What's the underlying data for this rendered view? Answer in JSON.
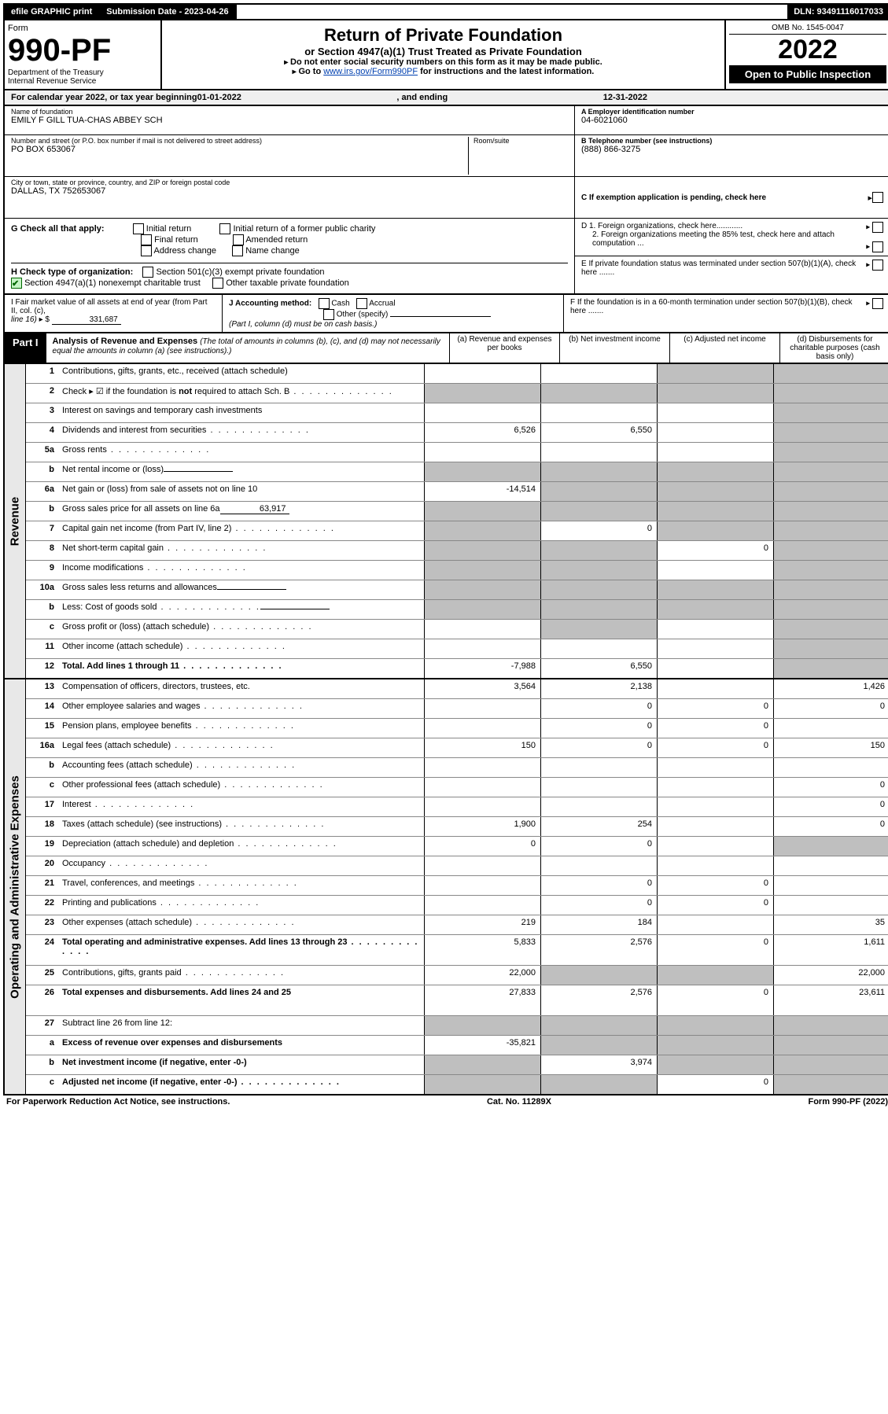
{
  "topbar": {
    "efile": "efile GRAPHIC print",
    "sub_label": "Submission Date - 2023-04-26",
    "dln": "DLN: 93491116017033"
  },
  "header": {
    "form_word": "Form",
    "form_no": "990-PF",
    "dept": "Department of the Treasury",
    "irs": "Internal Revenue Service",
    "title": "Return of Private Foundation",
    "subtitle": "or Section 4947(a)(1) Trust Treated as Private Foundation",
    "instr1": "Do not enter social security numbers on this form as it may be made public.",
    "instr2a": "Go to ",
    "instr2_link": "www.irs.gov/Form990PF",
    "instr2b": " for instructions and the latest information.",
    "omb": "OMB No. 1545-0047",
    "year": "2022",
    "open": "Open to Public Inspection"
  },
  "calendar": {
    "prefix": "For calendar year 2022, or tax year beginning ",
    "begin": "01-01-2022",
    "mid": ", and ending ",
    "end": "12-31-2022"
  },
  "id": {
    "name_lbl": "Name of foundation",
    "name": "EMILY F GILL TUA-CHAS ABBEY SCH",
    "addr_lbl": "Number and street (or P.O. box number if mail is not delivered to street address)",
    "addr": "PO BOX 653067",
    "room_lbl": "Room/suite",
    "city_lbl": "City or town, state or province, country, and ZIP or foreign postal code",
    "city": "DALLAS, TX  752653067",
    "a_lbl": "A Employer identification number",
    "a_val": "04-6021060",
    "b_lbl": "B Telephone number (see instructions)",
    "b_val": "(888) 866-3275",
    "c_lbl": "C If exemption application is pending, check here"
  },
  "g": {
    "prefix": "G Check all that apply:",
    "opts": [
      "Initial return",
      "Final return",
      "Address change",
      "Initial return of a former public charity",
      "Amended return",
      "Name change"
    ]
  },
  "h": {
    "prefix": "H Check type of organization:",
    "o1": "Section 501(c)(3) exempt private foundation",
    "o2": "Section 4947(a)(1) nonexempt charitable trust",
    "o3": "Other taxable private foundation"
  },
  "right_d": {
    "d1": "D 1. Foreign organizations, check here............",
    "d2": "2. Foreign organizations meeting the 85% test, check here and attach computation ...",
    "e": "E  If private foundation status was terminated under section 507(b)(1)(A), check here .......",
    "f": "F  If the foundation is in a 60-month termination under section 507(b)(1)(B), check here ......."
  },
  "i": {
    "lbl": "I Fair market value of all assets at end of year (from Part II, col. (c),",
    "line": "line 16)",
    "val": "331,687"
  },
  "j": {
    "lbl": "J Accounting method:",
    "o1": "Cash",
    "o2": "Accrual",
    "o3": "Other (specify)",
    "note": "(Part I, column (d) must be on cash basis.)"
  },
  "part1": {
    "label": "Part I",
    "title": "Analysis of Revenue and Expenses",
    "note": "(The total of amounts in columns (b), (c), and (d) may not necessarily equal the amounts in column (a) (see instructions).)",
    "cols": {
      "a": "(a)   Revenue and expenses per books",
      "b": "(b)   Net investment income",
      "c": "(c)   Adjusted net income",
      "d": "(d)   Disbursements for charitable purposes (cash basis only)"
    }
  },
  "side": {
    "rev": "Revenue",
    "exp": "Operating and Administrative Expenses"
  },
  "rows": [
    {
      "n": "1",
      "t": "Contributions, gifts, grants, etc., received (attach schedule)",
      "a": "",
      "b": "",
      "c": "s",
      "d": "s"
    },
    {
      "n": "2",
      "t": "Check ▸ ☑ if the foundation is not required to attach Sch. B",
      "dots": true,
      "a": "s",
      "b": "s",
      "c": "s",
      "d": "s",
      "nowrap": false,
      "bold_part": "not"
    },
    {
      "n": "3",
      "t": "Interest on savings and temporary cash investments",
      "a": "",
      "b": "",
      "c": "",
      "d": "s"
    },
    {
      "n": "4",
      "t": "Dividends and interest from securities",
      "dots": true,
      "a": "6,526",
      "b": "6,550",
      "c": "",
      "d": "s"
    },
    {
      "n": "5a",
      "t": "Gross rents",
      "dots": true,
      "a": "",
      "b": "",
      "c": "",
      "d": "s"
    },
    {
      "n": "b",
      "t": "Net rental income or (loss)",
      "inline": "",
      "a": "s",
      "b": "s",
      "c": "s",
      "d": "s"
    },
    {
      "n": "6a",
      "t": "Net gain or (loss) from sale of assets not on line 10",
      "a": "-14,514",
      "b": "s",
      "c": "s",
      "d": "s"
    },
    {
      "n": "b",
      "t": "Gross sales price for all assets on line 6a",
      "inline": "63,917",
      "a": "s",
      "b": "s",
      "c": "s",
      "d": "s"
    },
    {
      "n": "7",
      "t": "Capital gain net income (from Part IV, line 2)",
      "dots": true,
      "a": "s",
      "b": "0",
      "c": "s",
      "d": "s"
    },
    {
      "n": "8",
      "t": "Net short-term capital gain",
      "dots": true,
      "a": "s",
      "b": "s",
      "c": "0",
      "d": "s"
    },
    {
      "n": "9",
      "t": "Income modifications",
      "dots": true,
      "a": "s",
      "b": "s",
      "c": "",
      "d": "s"
    },
    {
      "n": "10a",
      "t": "Gross sales less returns and allowances",
      "inline": "",
      "a": "s",
      "b": "s",
      "c": "s",
      "d": "s"
    },
    {
      "n": "b",
      "t": "Less: Cost of goods sold",
      "dots": true,
      "inline": "",
      "a": "s",
      "b": "s",
      "c": "s",
      "d": "s"
    },
    {
      "n": "c",
      "t": "Gross profit or (loss) (attach schedule)",
      "dots": true,
      "a": "",
      "b": "s",
      "c": "",
      "d": "s"
    },
    {
      "n": "11",
      "t": "Other income (attach schedule)",
      "dots": true,
      "a": "",
      "b": "",
      "c": "",
      "d": "s"
    },
    {
      "n": "12",
      "t": "Total. Add lines 1 through 11",
      "dots": true,
      "bold": true,
      "a": "-7,988",
      "b": "6,550",
      "c": "",
      "d": "s"
    }
  ],
  "exp_rows": [
    {
      "n": "13",
      "t": "Compensation of officers, directors, trustees, etc.",
      "a": "3,564",
      "b": "2,138",
      "c": "",
      "d": "1,426"
    },
    {
      "n": "14",
      "t": "Other employee salaries and wages",
      "dots": true,
      "a": "",
      "b": "0",
      "c": "0",
      "d": "0"
    },
    {
      "n": "15",
      "t": "Pension plans, employee benefits",
      "dots": true,
      "a": "",
      "b": "0",
      "c": "0",
      "d": ""
    },
    {
      "n": "16a",
      "t": "Legal fees (attach schedule)",
      "dots": true,
      "a": "150",
      "b": "0",
      "c": "0",
      "d": "150"
    },
    {
      "n": "b",
      "t": "Accounting fees (attach schedule)",
      "dots": true,
      "a": "",
      "b": "",
      "c": "",
      "d": ""
    },
    {
      "n": "c",
      "t": "Other professional fees (attach schedule)",
      "dots": true,
      "a": "",
      "b": "",
      "c": "",
      "d": "0"
    },
    {
      "n": "17",
      "t": "Interest",
      "dots": true,
      "a": "",
      "b": "",
      "c": "",
      "d": "0"
    },
    {
      "n": "18",
      "t": "Taxes (attach schedule) (see instructions)",
      "dots": true,
      "a": "1,900",
      "b": "254",
      "c": "",
      "d": "0"
    },
    {
      "n": "19",
      "t": "Depreciation (attach schedule) and depletion",
      "dots": true,
      "a": "0",
      "b": "0",
      "c": "",
      "d": "s"
    },
    {
      "n": "20",
      "t": "Occupancy",
      "dots": true,
      "a": "",
      "b": "",
      "c": "",
      "d": ""
    },
    {
      "n": "21",
      "t": "Travel, conferences, and meetings",
      "dots": true,
      "a": "",
      "b": "0",
      "c": "0",
      "d": ""
    },
    {
      "n": "22",
      "t": "Printing and publications",
      "dots": true,
      "a": "",
      "b": "0",
      "c": "0",
      "d": ""
    },
    {
      "n": "23",
      "t": "Other expenses (attach schedule)",
      "dots": true,
      "a": "219",
      "b": "184",
      "c": "",
      "d": "35"
    },
    {
      "n": "24",
      "t": "Total operating and administrative expenses. Add lines 13 through 23",
      "dots": true,
      "bold": true,
      "a": "5,833",
      "b": "2,576",
      "c": "0",
      "d": "1,611",
      "tall": true
    },
    {
      "n": "25",
      "t": "Contributions, gifts, grants paid",
      "dots": true,
      "a": "22,000",
      "b": "s",
      "c": "s",
      "d": "22,000"
    },
    {
      "n": "26",
      "t": "Total expenses and disbursements. Add lines 24 and 25",
      "bold": true,
      "a": "27,833",
      "b": "2,576",
      "c": "0",
      "d": "23,611",
      "tall": true
    },
    {
      "n": "27",
      "t": "Subtract line 26 from line 12:",
      "a": "s",
      "b": "s",
      "c": "s",
      "d": "s"
    },
    {
      "n": "a",
      "t": "Excess of revenue over expenses and disbursements",
      "bold": true,
      "a": "-35,821",
      "b": "s",
      "c": "s",
      "d": "s"
    },
    {
      "n": "b",
      "t": "Net investment income (if negative, enter -0-)",
      "bold": true,
      "a": "s",
      "b": "3,974",
      "c": "s",
      "d": "s"
    },
    {
      "n": "c",
      "t": "Adjusted net income (if negative, enter -0-)",
      "dots": true,
      "bold": true,
      "a": "s",
      "b": "s",
      "c": "0",
      "d": "s"
    }
  ],
  "footer": {
    "left": "For Paperwork Reduction Act Notice, see instructions.",
    "mid": "Cat. No. 11289X",
    "right": "Form 990-PF (2022)"
  }
}
